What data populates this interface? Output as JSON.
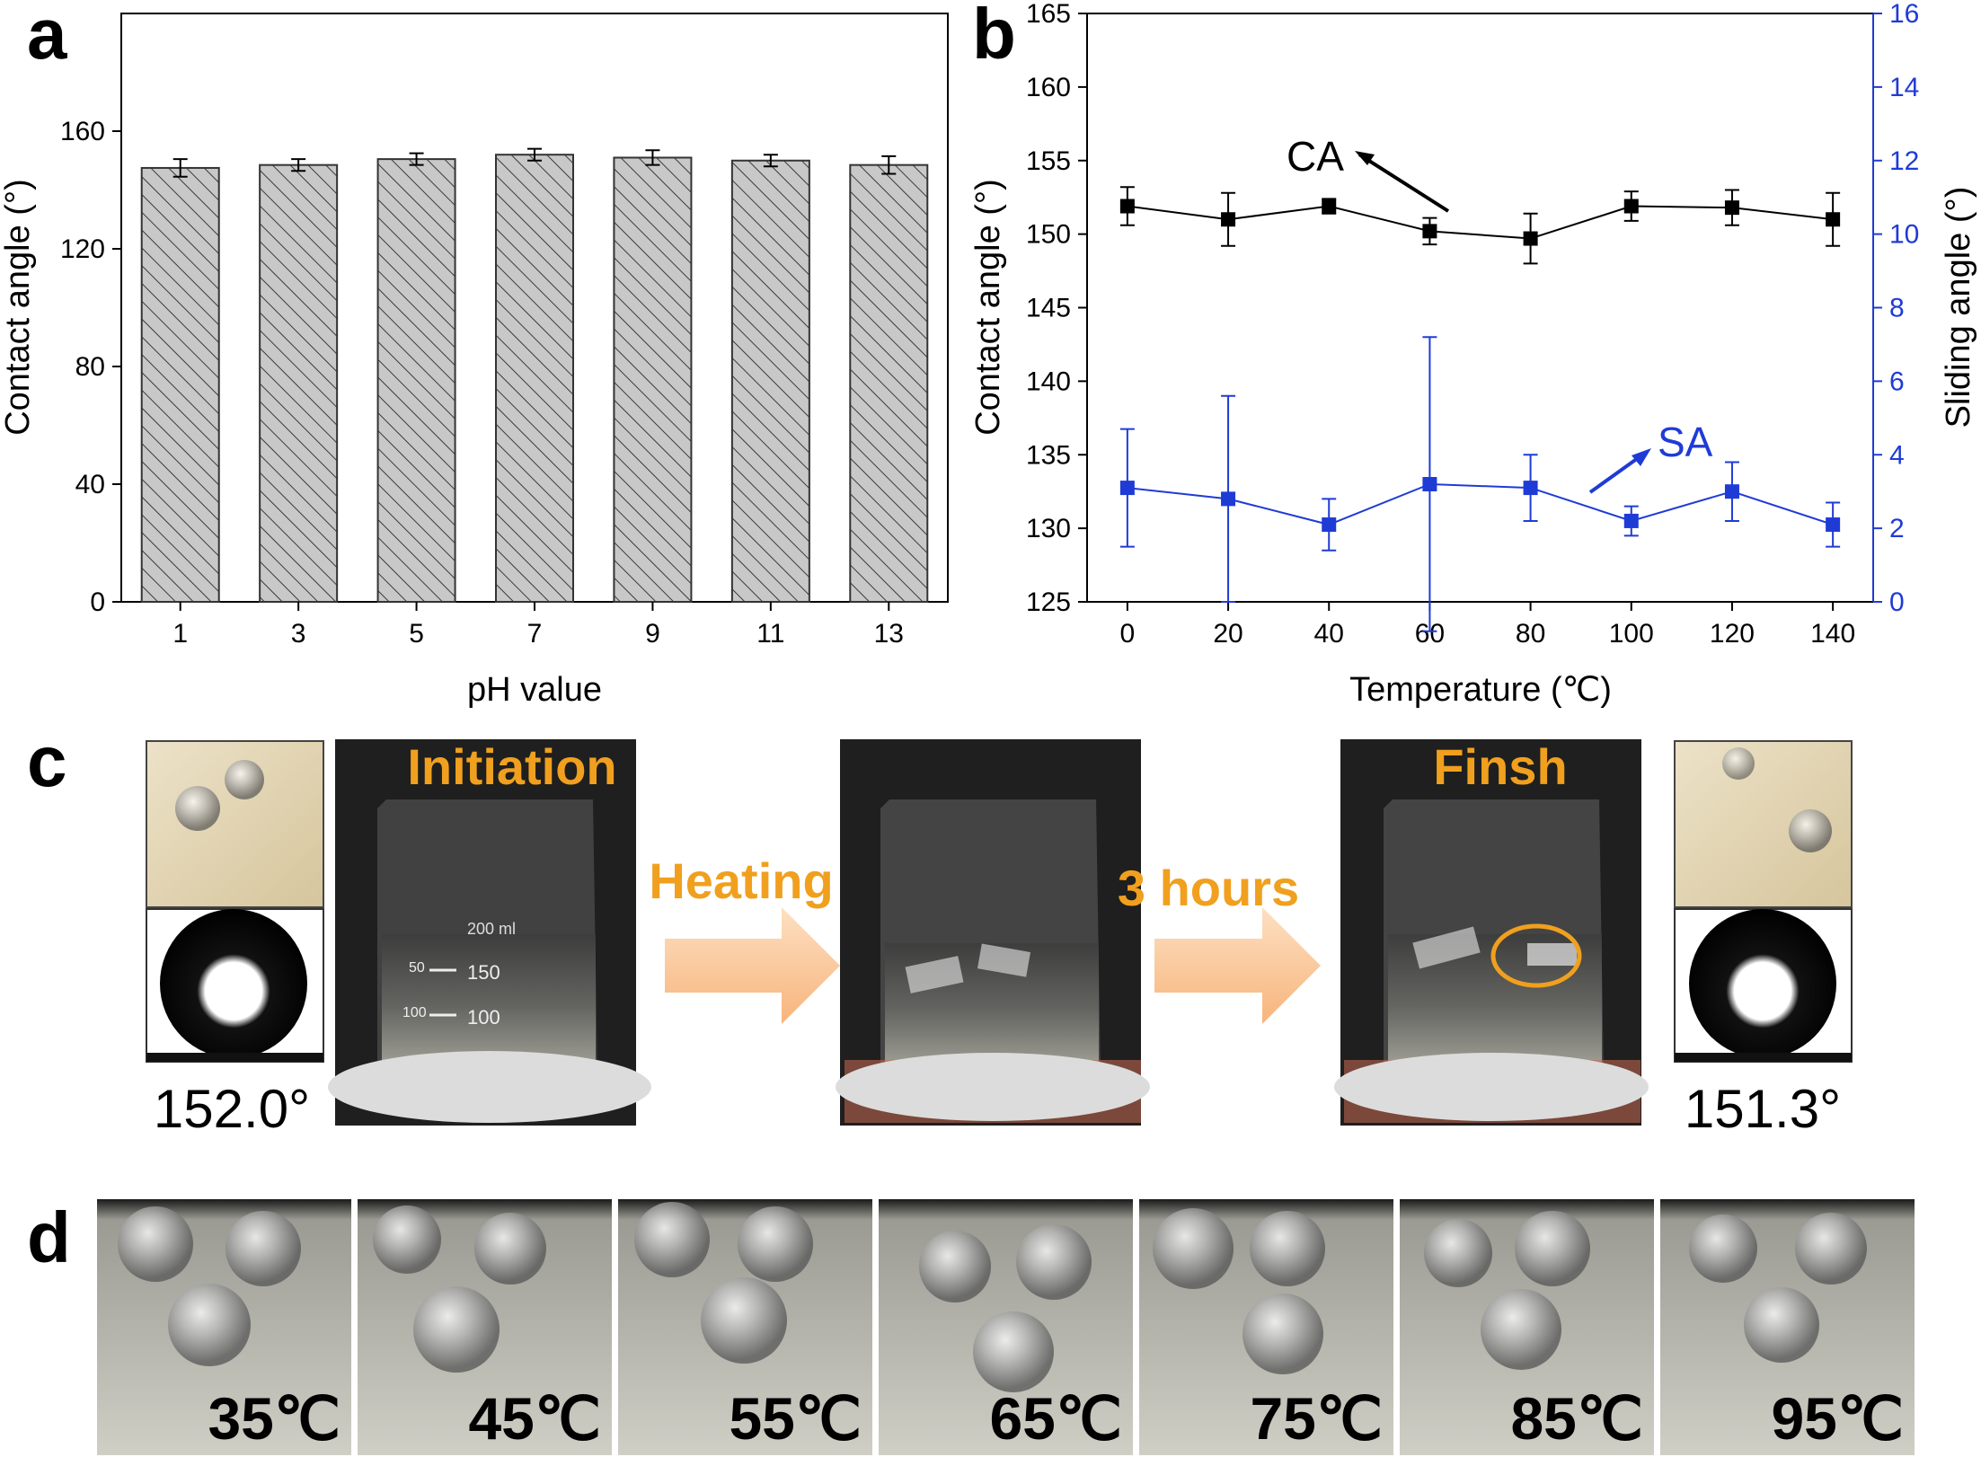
{
  "panels": {
    "a": "a",
    "b": "b",
    "c": "c",
    "d": "d"
  },
  "chart_data": [
    {
      "id": "a",
      "type": "bar",
      "title": "",
      "xlabel": "pH value",
      "ylabel": "Contact angle (°)",
      "categories": [
        "1",
        "3",
        "5",
        "7",
        "9",
        "11",
        "13"
      ],
      "values": [
        147.5,
        148.5,
        150.5,
        152.0,
        151.0,
        150.0,
        148.5
      ],
      "errors": [
        3.0,
        2.0,
        2.0,
        2.0,
        2.5,
        2.0,
        3.0
      ],
      "ylim": [
        0,
        200
      ],
      "yticks": [
        0,
        40,
        80,
        120,
        160
      ],
      "fill": "#c8c8c8",
      "hatch": "diagonal",
      "grid": false
    },
    {
      "id": "b",
      "type": "line",
      "title": "",
      "xlabel": "Temperature (℃)",
      "ylabel": "Contact angle (°)",
      "ylabel_right": "Sliding angle (°)",
      "x": [
        0,
        20,
        40,
        60,
        80,
        100,
        120,
        140
      ],
      "xticks": [
        0,
        20,
        40,
        60,
        80,
        100,
        120,
        140
      ],
      "xlim": [
        -8,
        148
      ],
      "ylim": [
        125,
        165
      ],
      "yticks": [
        125,
        130,
        135,
        140,
        145,
        150,
        155,
        160,
        165
      ],
      "ylim_right": [
        0,
        16
      ],
      "yticks_right": [
        0,
        2,
        4,
        6,
        8,
        10,
        12,
        14,
        16
      ],
      "series": [
        {
          "name": "CA",
          "axis": "left",
          "color": "#000000",
          "values": [
            151.9,
            151.0,
            151.9,
            150.2,
            149.7,
            151.9,
            151.8,
            151.0
          ],
          "errors": [
            1.3,
            1.8,
            0.5,
            0.9,
            1.7,
            1.0,
            1.2,
            1.8
          ]
        },
        {
          "name": "SA",
          "axis": "right",
          "color": "#1f3bd6",
          "values": [
            3.1,
            2.8,
            2.1,
            3.2,
            3.1,
            2.2,
            3.0,
            2.1
          ],
          "errors": [
            1.6,
            2.8,
            0.7,
            4.0,
            0.9,
            0.4,
            0.8,
            0.6
          ]
        }
      ],
      "grid": false
    }
  ],
  "panel_c": {
    "left_angle": "152.0°",
    "right_angle": "151.3°",
    "initiation": "Initiation",
    "heating": "Heating",
    "duration": "3 hours",
    "finish": "Finsh",
    "scale_upper_left": "150",
    "scale_lower_left": "100",
    "scale_left_small": "50",
    "scale_left_small2": "100",
    "scale_top": "200 ml"
  },
  "panel_d": {
    "temps": [
      "35℃",
      "45℃",
      "55℃",
      "65℃",
      "75℃",
      "85℃",
      "95℃"
    ]
  }
}
